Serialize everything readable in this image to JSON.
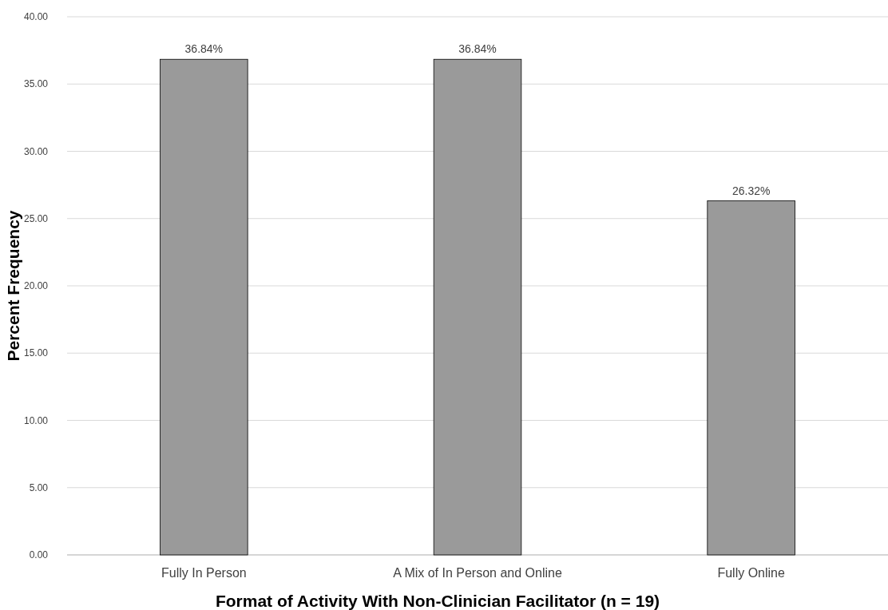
{
  "chart_data": {
    "type": "bar",
    "xlabel": "Format of Activity With Non-Clinician Facilitator (n = 19)",
    "ylabel": "Percent Frequency",
    "categories": [
      "Fully In Person",
      "A Mix of In Person and Online",
      "Fully Online"
    ],
    "values": [
      36.84,
      36.84,
      26.32
    ],
    "value_labels": [
      "36.84%",
      "36.84%",
      "26.32%"
    ],
    "color": "#9a9a9a",
    "ylim": [
      0,
      40
    ],
    "yticks": [
      {
        "value": 0,
        "label": "0.00"
      },
      {
        "value": 5,
        "label": "5.00"
      },
      {
        "value": 10,
        "label": "10.00"
      },
      {
        "value": 15,
        "label": "15.00"
      },
      {
        "value": 20,
        "label": "20.00"
      },
      {
        "value": 25,
        "label": "25.00"
      },
      {
        "value": 30,
        "label": "30.00"
      },
      {
        "value": 35,
        "label": "35.00"
      },
      {
        "value": 40,
        "label": "40.00"
      }
    ],
    "grid": "y"
  }
}
